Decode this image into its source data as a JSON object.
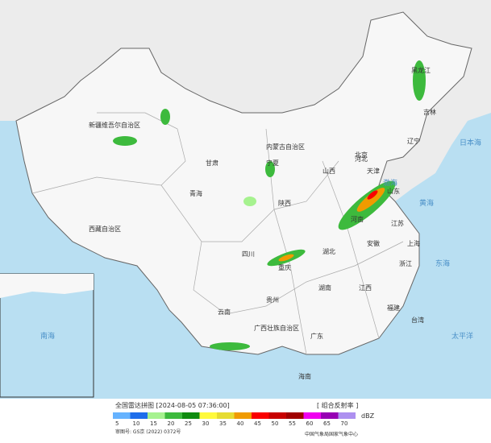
{
  "map": {
    "labels": [
      "新疆维吾尔自治区",
      "西藏自治区",
      "青海",
      "甘肃",
      "内蒙古自治区",
      "黑龙江",
      "吉林",
      "辽宁",
      "河北",
      "山西",
      "陕西",
      "宁夏",
      "四川",
      "重庆",
      "贵州",
      "云南",
      "广西壮族自治区",
      "广东",
      "湖南",
      "湖北",
      "河南",
      "山东",
      "江苏",
      "安徽",
      "浙江",
      "江西",
      "福建",
      "台湾",
      "海南",
      "北京",
      "天津",
      "上海"
    ],
    "seas": [
      "渤海",
      "黄海",
      "东海",
      "日本海",
      "太平洋",
      "南海"
    ]
  },
  "footer": {
    "title": "全国雷达拼图 [2024-08-05 07:36:00]",
    "product": "[ 组合反射率 ]",
    "unit": "dBZ",
    "approval": "审图号: GS京 (2022) 0372号",
    "source": "中国气象局国家气象中心",
    "legend": [
      {
        "value": 5,
        "color": "#66b3ff"
      },
      {
        "value": 10,
        "color": "#1e6eeb"
      },
      {
        "value": 15,
        "color": "#a6f28f"
      },
      {
        "value": 20,
        "color": "#3dba3d"
      },
      {
        "value": 25,
        "color": "#0f8c0f"
      },
      {
        "value": 30,
        "color": "#fffa3c"
      },
      {
        "value": 35,
        "color": "#e6dc32"
      },
      {
        "value": 40,
        "color": "#f09b00"
      },
      {
        "value": 45,
        "color": "#fa0000"
      },
      {
        "value": 50,
        "color": "#c80000"
      },
      {
        "value": 55,
        "color": "#a00000"
      },
      {
        "value": 60,
        "color": "#f000f0"
      },
      {
        "value": 65,
        "color": "#9600b4"
      },
      {
        "value": 70,
        "color": "#ad90f0"
      }
    ]
  }
}
